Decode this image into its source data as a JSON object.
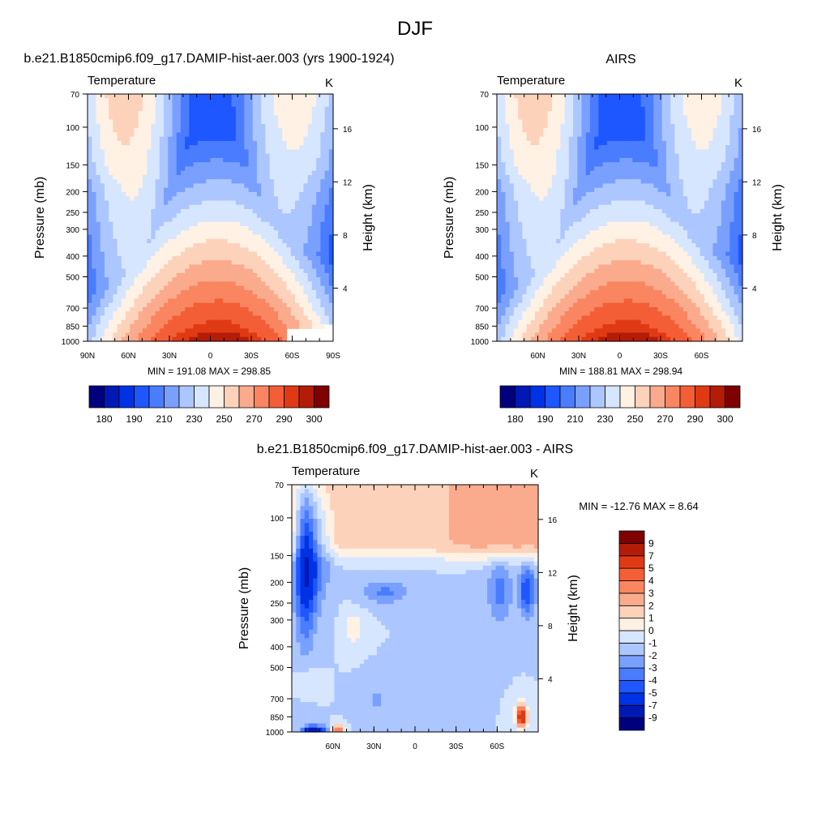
{
  "figure": {
    "title": "DJF"
  },
  "chart_data": [
    {
      "type": "heatmap",
      "title": "b.e21.B1850cmip6.f09_g17.DAMIP-hist-aer.003 (yrs 1900-1924)",
      "left_label": "Temperature",
      "right_label": "K",
      "xlabel": "",
      "ylabel": "Pressure (mb)",
      "ylabel_right": "Height (km)",
      "x_ticks": [
        "90N",
        "60N",
        "30N",
        "0",
        "30S",
        "60S",
        "90S"
      ],
      "x_tick_values": [
        90,
        60,
        30,
        0,
        -30,
        -60,
        -90
      ],
      "xlim": [
        90,
        -90
      ],
      "y_ticks": [
        70,
        100,
        150,
        200,
        250,
        300,
        400,
        500,
        700,
        850,
        1000
      ],
      "ylim": [
        1000,
        70
      ],
      "y_right_ticks": [
        4,
        8,
        12,
        16
      ],
      "stats": "MIN = 191.08  MAX = 298.85",
      "min": 191.08,
      "max": 298.85,
      "colorbar": {
        "orientation": "horizontal",
        "levels": [
          175,
          180,
          185,
          190,
          200,
          210,
          220,
          230,
          240,
          250,
          260,
          270,
          280,
          290,
          295,
          300
        ],
        "labels": [
          "180",
          "190",
          "210",
          "230",
          "250",
          "270",
          "290",
          "300"
        ],
        "colors": [
          "#00007f",
          "#0019b5",
          "#0032e5",
          "#1e56ff",
          "#4a7cff",
          "#7aa0ff",
          "#acc6ff",
          "#d7e6ff",
          "#fff1e4",
          "#fdd2bb",
          "#fbab8d",
          "#f98661",
          "#f45e36",
          "#e03a14",
          "#b51c08",
          "#7f0000"
        ]
      }
    },
    {
      "type": "heatmap",
      "title": "AIRS",
      "left_label": "Temperature",
      "right_label": "K",
      "xlabel": "",
      "ylabel": "Pressure (mb)",
      "ylabel_right": "Height (km)",
      "x_ticks": [
        "60N",
        "30N",
        "0",
        "30S",
        "60S"
      ],
      "x_tick_values": [
        60,
        30,
        0,
        -30,
        -60
      ],
      "xlim": [
        90,
        -90
      ],
      "y_ticks": [
        70,
        100,
        150,
        200,
        250,
        300,
        400,
        500,
        700,
        850,
        1000
      ],
      "ylim": [
        1000,
        70
      ],
      "y_right_ticks": [
        4,
        8,
        12,
        16
      ],
      "stats": "MIN = 188.81  MAX = 298.94",
      "min": 188.81,
      "max": 298.94,
      "colorbar": {
        "orientation": "horizontal",
        "levels": [
          175,
          180,
          185,
          190,
          200,
          210,
          220,
          230,
          240,
          250,
          260,
          270,
          280,
          290,
          295,
          300
        ],
        "labels": [
          "180",
          "190",
          "210",
          "230",
          "250",
          "270",
          "290",
          "300"
        ],
        "colors": [
          "#00007f",
          "#0019b5",
          "#0032e5",
          "#1e56ff",
          "#4a7cff",
          "#7aa0ff",
          "#acc6ff",
          "#d7e6ff",
          "#fff1e4",
          "#fdd2bb",
          "#fbab8d",
          "#f98661",
          "#f45e36",
          "#e03a14",
          "#b51c08",
          "#7f0000"
        ]
      }
    },
    {
      "type": "heatmap",
      "title": "b.e21.B1850cmip6.f09_g17.DAMIP-hist-aer.003 - AIRS",
      "left_label": "Temperature",
      "right_label": "K",
      "xlabel": "",
      "ylabel": "Pressure (mb)",
      "ylabel_right": "Height (km)",
      "x_ticks": [
        "60N",
        "30N",
        "0",
        "30S",
        "60S"
      ],
      "x_tick_values": [
        60,
        30,
        0,
        -30,
        -60
      ],
      "xlim": [
        90,
        -90
      ],
      "y_ticks": [
        70,
        100,
        150,
        200,
        250,
        300,
        400,
        500,
        700,
        850,
        1000
      ],
      "ylim": [
        1000,
        70
      ],
      "y_right_ticks": [
        4,
        8,
        12,
        16
      ],
      "stats": "MIN = -12.76  MAX =   8.64",
      "min": -12.76,
      "max": 8.64,
      "colorbar": {
        "orientation": "vertical",
        "levels": [
          -10,
          -9,
          -7,
          -5,
          -4,
          -3,
          -2,
          -1,
          0,
          1,
          2,
          3,
          4,
          5,
          7,
          9,
          10
        ],
        "labels": [
          "-9",
          "-7",
          "-5",
          "-4",
          "-3",
          "-2",
          "-1",
          "0",
          "1",
          "2",
          "3",
          "4",
          "5",
          "7",
          "9"
        ],
        "colors": [
          "#00007f",
          "#0019b5",
          "#0032e5",
          "#1e56ff",
          "#4a7cff",
          "#7aa0ff",
          "#acc6ff",
          "#d7e6ff",
          "#fff1e4",
          "#fdd2bb",
          "#fbab8d",
          "#f98661",
          "#f45e36",
          "#e03a14",
          "#b51c08",
          "#7f0000"
        ]
      }
    }
  ]
}
